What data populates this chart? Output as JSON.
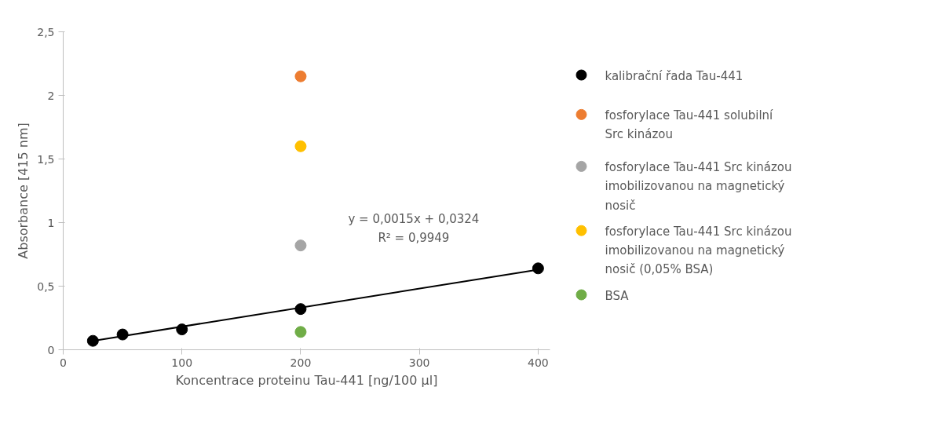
{
  "chart_data": {
    "type": "scatter",
    "xlabel": "Koncentrace proteinu Tau-441 [ng/100 µl]",
    "ylabel": "Absorbance [415 nm]",
    "xlim": [
      0,
      410
    ],
    "xticks": [
      0,
      100,
      200,
      300,
      400
    ],
    "ylim": [
      0,
      2.5
    ],
    "yticks": [
      0,
      {
        "value": 0.5,
        "label": "0,5"
      },
      1,
      {
        "value": 1.5,
        "label": "1,5"
      },
      2,
      {
        "value": 2.5,
        "label": "2,5"
      }
    ],
    "grid": false,
    "legend": "right",
    "marker": "circle",
    "annotations": [
      "y = 0,0015x + 0,0324",
      "R² = 0,9949"
    ],
    "series": [
      {
        "name": "kalibrační řada Tau-441",
        "color": "#000000",
        "x": [
          25,
          50,
          100,
          200,
          400
        ],
        "values": [
          0.07,
          0.12,
          0.16,
          0.32,
          0.64
        ]
      },
      {
        "name": "fosforylace Tau-441 solubilní Src kinázou",
        "color": "#ed7d31",
        "x": [
          200
        ],
        "values": [
          2.15
        ]
      },
      {
        "name": "fosforylace Tau-441 Src kinázou imobilizovanou na magnetický nosič",
        "color": "#a5a5a5",
        "x": [
          200
        ],
        "values": [
          0.82
        ]
      },
      {
        "name": "fosforylace Tau-441 Src kinázou imobilizovanou na magnetický nosič (0,05% BSA)",
        "color": "#ffc000",
        "x": [
          200
        ],
        "values": [
          1.6
        ]
      },
      {
        "name": "BSA",
        "color": "#70ad47",
        "x": [
          200
        ],
        "values": [
          0.14
        ]
      },
      {
        "type": "line",
        "color": "#000000",
        "x": [
          25,
          400
        ],
        "values": [
          0.07,
          0.63
        ],
        "marker": "none"
      }
    ]
  }
}
